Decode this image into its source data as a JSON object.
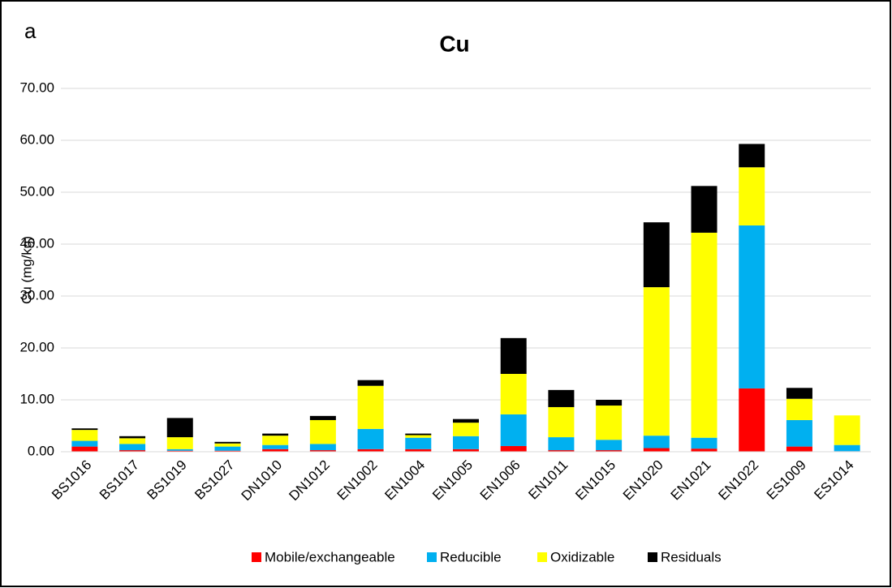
{
  "panel_label": "a",
  "chart_data": {
    "type": "stacked_bar",
    "title": "Cu",
    "y_label": "Cu (mg/kg)",
    "categories": [
      "BS1016",
      "BS1017",
      "BS1019",
      "BS1027",
      "DN1010",
      "DN1012",
      "EN1002",
      "EN1004",
      "EN1005",
      "EN1006",
      "EN1011",
      "EN1015",
      "EN1020",
      "EN1021",
      "EN1022",
      "ES1009",
      "ES1014"
    ],
    "series": [
      {
        "name": "Mobile/exchangeable",
        "color": "#ff0000",
        "values": [
          1.0,
          0.3,
          0.2,
          0.2,
          0.5,
          0.3,
          0.5,
          0.5,
          0.5,
          1.1,
          0.3,
          0.3,
          0.7,
          0.6,
          12.2,
          1.0,
          0.1
        ]
      },
      {
        "name": "Reducible",
        "color": "#00b0f0",
        "values": [
          1.1,
          1.2,
          0.3,
          0.8,
          0.8,
          1.2,
          3.9,
          2.2,
          2.5,
          6.1,
          2.5,
          2.0,
          2.4,
          2.1,
          31.4,
          5.1,
          1.2
        ]
      },
      {
        "name": "Oxidizable",
        "color": "#ffff00",
        "values": [
          2.1,
          1.1,
          2.3,
          0.6,
          1.8,
          4.6,
          8.3,
          0.5,
          2.6,
          7.8,
          5.8,
          6.6,
          28.6,
          39.5,
          11.2,
          4.1,
          5.7
        ]
      },
      {
        "name": "Residuals",
        "color": "#000000",
        "values": [
          0.3,
          0.4,
          3.7,
          0.3,
          0.4,
          0.8,
          1.1,
          0.3,
          0.7,
          6.9,
          3.3,
          1.1,
          12.5,
          9.0,
          4.5,
          2.1,
          0
        ]
      }
    ],
    "ylim": [
      0,
      70
    ],
    "yticks": [
      {
        "value": 0,
        "label": "0.00"
      },
      {
        "value": 10,
        "label": "10.00"
      },
      {
        "value": 20,
        "label": "20.00"
      },
      {
        "value": 30,
        "label": "30.00"
      },
      {
        "value": 40,
        "label": "40.00"
      },
      {
        "value": 50,
        "label": "50.00"
      },
      {
        "value": 60,
        "label": "60.00"
      },
      {
        "value": 70,
        "label": "70.00"
      }
    ],
    "grid": true,
    "legend": "bottom"
  }
}
